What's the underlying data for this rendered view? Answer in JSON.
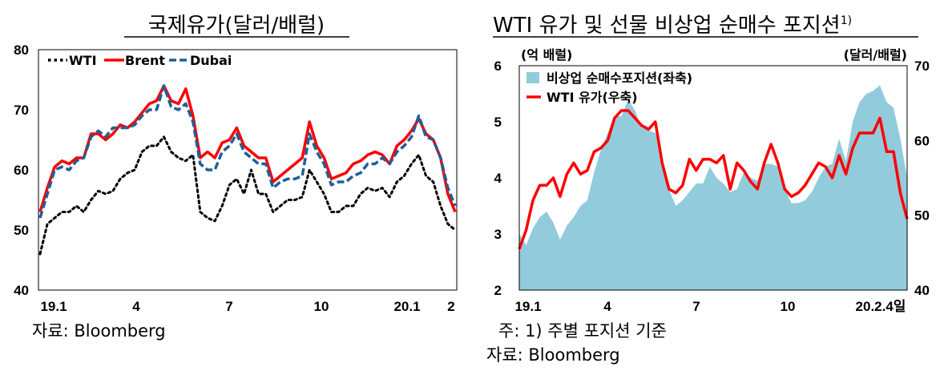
{
  "chart_data": [
    {
      "type": "line",
      "title": "국제유가(달러/배럴)",
      "ylim": [
        40,
        80
      ],
      "yticks": [
        "80",
        "70",
        "60",
        "50",
        "40"
      ],
      "xticks": [
        "19.1",
        "4",
        "7",
        "10",
        "20.1",
        "2"
      ],
      "legend_position": "top-left",
      "series": [
        {
          "name": "WTI",
          "color": "#000000",
          "style": "dotted",
          "values": [
            46,
            51,
            52,
            53,
            53,
            54,
            53,
            55,
            56.5,
            56,
            56.5,
            58.5,
            59.5,
            60,
            63,
            64,
            64,
            65.5,
            63,
            62,
            61.5,
            62.5,
            53,
            52,
            51.5,
            54,
            57.5,
            58.5,
            56,
            60,
            56,
            56,
            53,
            54,
            55,
            55,
            55.5,
            60,
            58,
            56,
            53,
            53,
            54,
            54,
            56,
            57,
            56.5,
            57,
            55.5,
            58,
            59,
            61,
            62.5,
            59,
            58,
            54,
            51,
            50
          ]
        },
        {
          "name": "Brent",
          "color": "#ff0000",
          "style": "solid",
          "values": [
            53,
            57,
            60.5,
            61.5,
            61,
            62,
            62,
            66,
            66,
            65,
            66,
            67.5,
            67,
            68,
            69.5,
            71,
            71.5,
            74,
            71.5,
            71,
            73.5,
            69,
            62,
            63,
            62,
            64.5,
            65,
            67,
            64,
            63,
            62,
            62,
            58,
            59,
            60,
            61,
            62,
            68,
            64,
            62,
            58.5,
            59,
            59.5,
            61,
            61.5,
            62.5,
            63,
            62.5,
            61,
            64,
            65,
            66.5,
            68.5,
            66,
            65,
            62,
            56,
            53
          ]
        },
        {
          "name": "Dubai",
          "color": "#1f5f99",
          "style": "dashed",
          "values": [
            52,
            56,
            60,
            60.5,
            60,
            61.5,
            62,
            65.5,
            66.5,
            65.5,
            67,
            67,
            67,
            67.5,
            69,
            70,
            70,
            74,
            70.5,
            70,
            71,
            68,
            61,
            60,
            60,
            63,
            64,
            66,
            63,
            62,
            61,
            61,
            57,
            58,
            58.5,
            58.5,
            59,
            66,
            63,
            61,
            57.5,
            58,
            58,
            59,
            59.5,
            61,
            61,
            62,
            61,
            63,
            64,
            65.5,
            69,
            65.5,
            65,
            62,
            57,
            54
          ]
        }
      ],
      "source": "자료:  Bloomberg"
    },
    {
      "type": "area+line",
      "title": "WTI 유가 및 선물 비상업 순매수 포지션",
      "title_note": "1)",
      "ylabel_left": "(억 배럴)",
      "ylabel_right": "(달러/배럴)",
      "ylim_left": [
        2,
        6
      ],
      "ylim_right": [
        40,
        70
      ],
      "yticks_left": [
        "6",
        "5",
        "4",
        "3",
        "2"
      ],
      "yticks_right": [
        "70",
        "60",
        "50",
        "40"
      ],
      "xticks": [
        "19.1",
        "4",
        "7",
        "10",
        "20.2.4일"
      ],
      "legend_position": "top-left",
      "series": [
        {
          "name": "비상업 순매수포지션(좌축)",
          "color": "#92cbdc",
          "axis": "left",
          "kind": "area",
          "values": [
            3.0,
            2.8,
            3.1,
            3.3,
            3.4,
            3.2,
            2.9,
            3.15,
            3.3,
            3.5,
            3.6,
            4.1,
            4.5,
            4.8,
            5.1,
            5.1,
            5.4,
            5.2,
            4.9,
            4.85,
            4.8,
            4.3,
            3.8,
            3.5,
            3.6,
            3.75,
            3.9,
            3.9,
            4.2,
            4.0,
            3.9,
            3.75,
            3.8,
            4.1,
            4.0,
            3.95,
            4.25,
            4.25,
            4.2,
            3.8,
            3.55,
            3.55,
            3.6,
            3.75,
            4.0,
            4.2,
            4.25,
            4.7,
            4.3,
            5.0,
            5.35,
            5.5,
            5.55,
            5.65,
            5.35,
            5.25,
            4.7,
            4.0
          ]
        },
        {
          "name": "WTI 유가(우축)",
          "color": "#ff0000",
          "axis": "right",
          "kind": "line",
          "values": [
            45.5,
            48,
            52,
            54,
            54,
            55,
            52.5,
            55.5,
            57,
            55.5,
            56,
            58.5,
            59,
            60,
            63,
            64,
            64,
            63,
            62,
            61.5,
            62.5,
            57,
            53.5,
            53,
            54,
            57.5,
            56,
            57.5,
            57.5,
            57,
            58,
            53.5,
            57,
            56,
            54.5,
            53.5,
            57,
            59.5,
            57,
            53.5,
            52.5,
            53,
            54,
            55.5,
            57,
            56.5,
            55,
            58,
            55.5,
            59,
            61,
            61,
            61,
            63,
            58.5,
            58.5,
            53,
            49.5
          ]
        }
      ],
      "note": "주: 1) 주별 포지션 기준",
      "source": "자료: Bloomberg"
    }
  ]
}
